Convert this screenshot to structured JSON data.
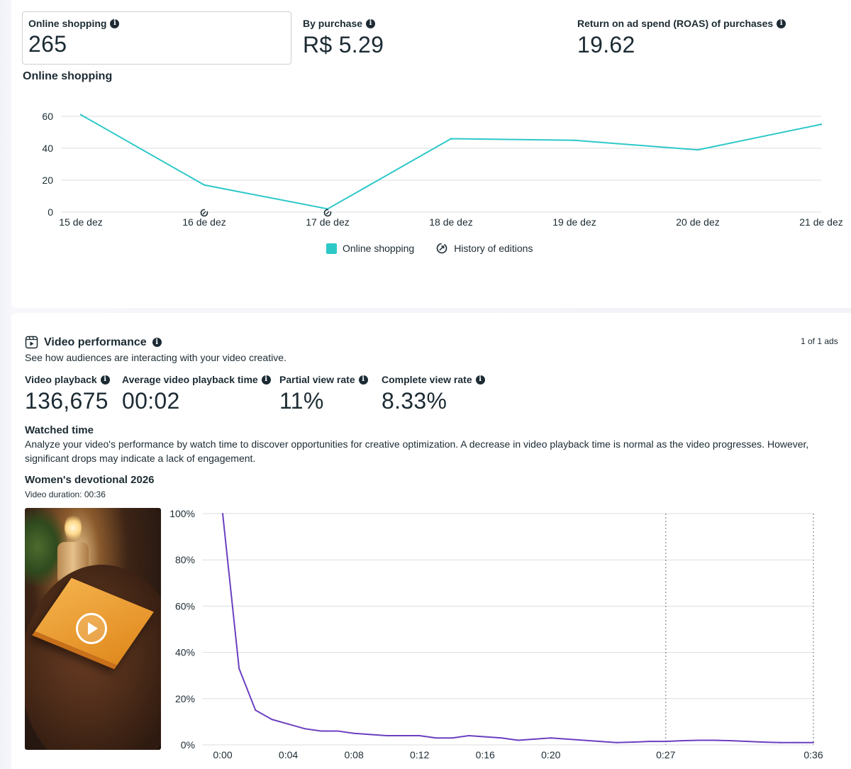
{
  "summary": {
    "online_shopping": {
      "label": "Online shopping",
      "value": "265"
    },
    "by_purchase": {
      "label": "By purchase",
      "value": "R$ 5.29"
    },
    "roas": {
      "label": "Return on ad spend (ROAS) of purchases",
      "value": "19.62"
    }
  },
  "shopping_chart": {
    "section_title": "Online shopping",
    "legend": {
      "series_label": "Online shopping",
      "history_label": "History of editions"
    },
    "y_ticks": [
      "60",
      "40",
      "20",
      "0"
    ],
    "colors": {
      "series": "#2ec8c8",
      "grid": "#dadde1"
    }
  },
  "video": {
    "title": "Video performance",
    "subtitle": "See how audiences are interacting with your video creative.",
    "ads_count": "1 of 1 ads",
    "metrics": [
      {
        "label": "Video playback",
        "value": "136,675"
      },
      {
        "label": "Average video playback time",
        "value": "00:02"
      },
      {
        "label": "Partial view rate",
        "value": "11%"
      },
      {
        "label": "Complete view rate",
        "value": "8.33%"
      }
    ],
    "watched_time": {
      "title": "Watched time",
      "description": "Analyze your video's performance by watch time to discover opportunities for creative optimization. A decrease in video playback time is normal as the video progresses. However, significant drops may indicate a lack of engagement."
    },
    "creative": {
      "name": "Women's devotional 2026",
      "duration": "Video duration: 00:36"
    },
    "chart_colors": {
      "series": "#6b3fc0",
      "grid": "#dadde1"
    }
  },
  "chart_data": [
    {
      "type": "line",
      "title": "Online shopping",
      "x": [
        "15 de dez",
        "16 de dez",
        "17 de dez",
        "18 de dez",
        "19 de dez",
        "20 de dez",
        "21 de dez"
      ],
      "series": [
        {
          "name": "Online shopping",
          "values": [
            61,
            17,
            2,
            46,
            45,
            39,
            55
          ]
        }
      ],
      "edit_markers": [
        "16 de dez",
        "17 de dez"
      ],
      "ylim": [
        0,
        60
      ],
      "yticks": [
        0,
        20,
        40,
        60
      ],
      "grid": true,
      "legend": "bottom-center"
    },
    {
      "type": "line",
      "title": "Women's devotional 2026",
      "x": [
        0,
        1,
        2,
        3,
        4,
        5,
        6,
        7,
        8,
        9,
        10,
        11,
        12,
        13,
        14,
        15,
        16,
        17,
        18,
        19,
        20,
        21,
        22,
        23,
        24,
        25,
        26,
        27,
        28,
        29,
        30,
        31,
        32,
        33,
        34,
        35,
        36
      ],
      "series": [
        {
          "values": [
            100,
            33,
            15,
            11,
            9,
            7,
            6,
            6,
            5,
            4.5,
            4,
            4,
            4,
            3,
            3,
            4,
            3.5,
            3,
            2,
            2.5,
            3,
            2.5,
            2,
            1.5,
            1,
            1.2,
            1.5,
            1.5,
            1.8,
            2,
            2,
            1.8,
            1.5,
            1.2,
            1,
            1,
            1
          ]
        }
      ],
      "xticks": [
        "0:00",
        "0:04",
        "0:08",
        "0:12",
        "0:16",
        "0:20",
        "0:27",
        "0:36"
      ],
      "xtick_values": [
        0,
        4,
        8,
        12,
        16,
        20,
        27,
        36
      ],
      "yticks": [
        "0%",
        "20%",
        "40%",
        "60%",
        "80%",
        "100%"
      ],
      "ylim": [
        0,
        100
      ],
      "markers_dotted": [
        27,
        36
      ],
      "grid": true
    }
  ]
}
